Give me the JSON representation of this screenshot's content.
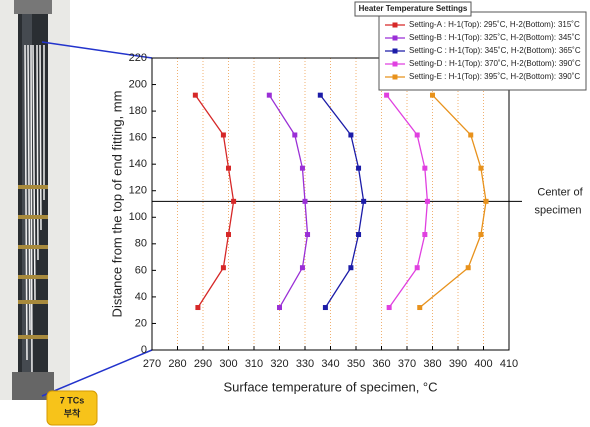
{
  "chart_data": {
    "type": "line",
    "xlabel": "Surface temperature of specimen, °C",
    "ylabel": "Distance from the top of end fitting, mm",
    "xlim": [
      270,
      410
    ],
    "xticks": [
      270,
      280,
      290,
      300,
      310,
      320,
      330,
      340,
      350,
      360,
      370,
      380,
      390,
      400,
      410
    ],
    "ylim": [
      0,
      220
    ],
    "yticks": [
      0,
      20,
      40,
      60,
      80,
      100,
      120,
      140,
      160,
      180,
      200,
      220
    ],
    "grid": true,
    "legend_title": "Heater Temperature Settings",
    "legend_position": "upper right",
    "hline": 112,
    "hline_label": [
      "Center of",
      "specimen"
    ],
    "series": [
      {
        "name": "Setting-A : H-1(Top): 295˚C,  H-2(Bottom): 315˚C",
        "color": "#d62828",
        "x": [
          288,
          298,
          300,
          302,
          300,
          298,
          287
        ],
        "y": [
          32,
          62,
          87,
          112,
          137,
          162,
          192
        ]
      },
      {
        "name": "Setting-B : H-1(Top): 325˚C,  H-2(Bottom): 345˚C",
        "color": "#9a2fd6",
        "x": [
          320,
          329,
          331,
          330,
          329,
          326,
          316
        ],
        "y": [
          32,
          62,
          87,
          112,
          137,
          162,
          192
        ]
      },
      {
        "name": "Setting-C : H-1(Top): 345˚C,  H-2(Bottom): 365˚C",
        "color": "#1c1ca8",
        "x": [
          338,
          348,
          351,
          353,
          351,
          348,
          336
        ],
        "y": [
          32,
          62,
          87,
          112,
          137,
          162,
          192
        ]
      },
      {
        "name": "Setting-D : H-1(Top): 370˚C,  H-2(Bottom): 390˚C",
        "color": "#e040e0",
        "x": [
          363,
          374,
          377,
          378,
          377,
          374,
          362
        ],
        "y": [
          32,
          62,
          87,
          112,
          137,
          162,
          192
        ]
      },
      {
        "name": "Setting-E : H-1(Top): 395˚C,  H-2(Bottom): 390˚C",
        "color": "#e8921c",
        "x": [
          375,
          394,
          399,
          401,
          399,
          395,
          380
        ],
        "y": [
          32,
          62,
          87,
          112,
          137,
          162,
          192
        ]
      }
    ]
  },
  "photo_callout": [
    "7 TCs",
    "부착"
  ]
}
